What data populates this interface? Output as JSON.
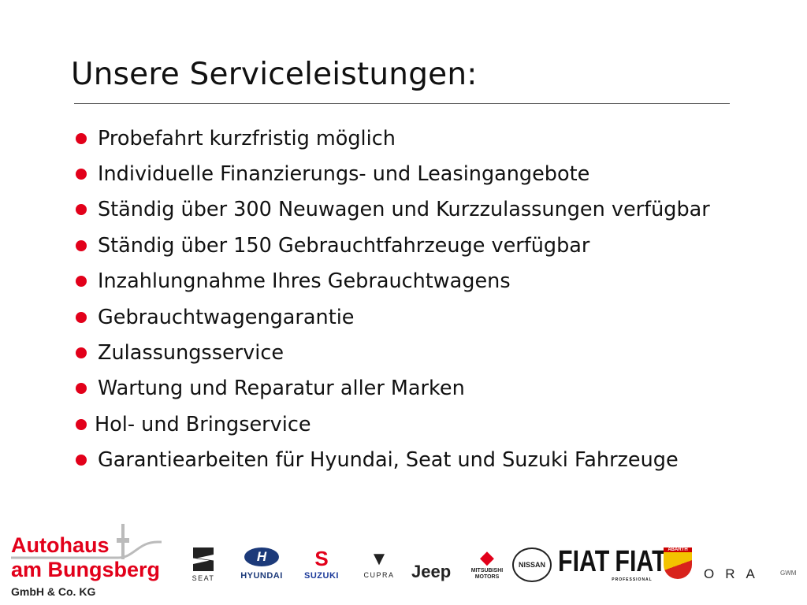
{
  "title": "Unsere Serviceleistungen:",
  "bullet_color": "#e2001a",
  "services": [
    "Probefahrt kurzfristig möglich",
    "Individuelle Finanzierungs- und Leasingangebote",
    "Ständig über 300 Neuwagen und Kurzzulassungen verfügbar",
    "Ständig über 150 Gebrauchtfahrzeuge verfügbar",
    "Inzahlungnahme Ihres Gebrauchtwagens",
    "Gebrauchtwagengarantie",
    "Zulassungsservice",
    "Wartung und Reparatur aller Marken",
    "Hol- und Bringservice",
    "Garantiearbeiten für Hyundai, Seat und Suzuki Fahrzeuge"
  ],
  "company": {
    "line1": "Autohaus",
    "line2": "am Bungsberg",
    "line3": "GmbH & Co. KG"
  },
  "brands": {
    "seat": "SEAT",
    "hyundai": "HYUNDAI",
    "suzuki": "SUZUKI",
    "cupra": "CUPRA",
    "jeep": "Jeep",
    "mitsubishi": "MITSUBISHI MOTORS",
    "nissan": "NISSAN",
    "fiat": "FIAT",
    "fiat_pro": "FIAT",
    "fiat_pro_sub": "PROFESSIONAL",
    "abarth": "ABARTH",
    "ora": "ORA",
    "gwm": "GWM"
  }
}
